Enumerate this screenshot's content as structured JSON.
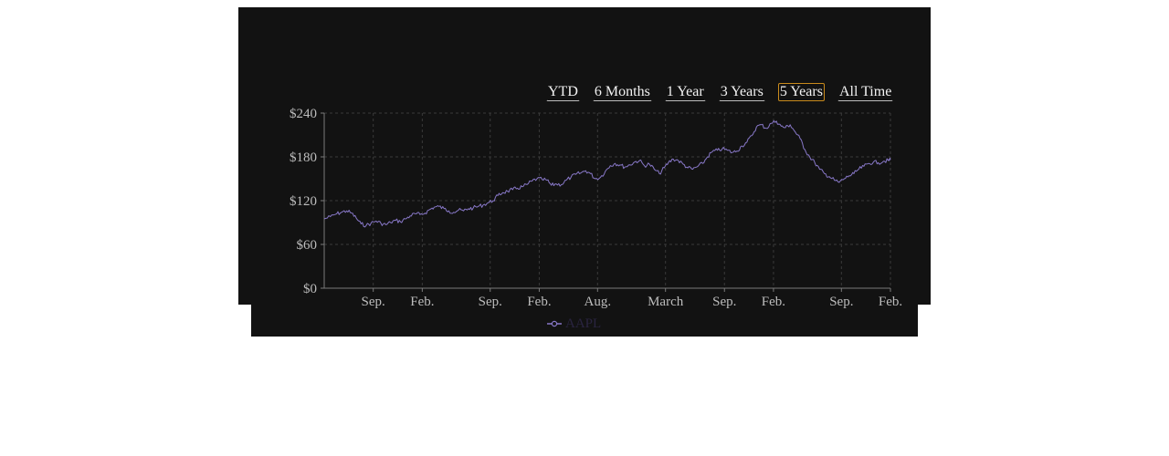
{
  "range_buttons": [
    {
      "label": "YTD",
      "active": false
    },
    {
      "label": "6 Months",
      "active": false
    },
    {
      "label": "1 Year",
      "active": false
    },
    {
      "label": "3 Years",
      "active": false
    },
    {
      "label": "5 Years",
      "active": true
    },
    {
      "label": "All Time",
      "active": false
    }
  ],
  "colors": {
    "background": "#121212",
    "series": "#8878c8",
    "active_button_border": "#c88a1c",
    "grid": "#3a3a3a",
    "axis": "#7a7a7a",
    "tick_text": "#bdbdbd"
  },
  "chart_data": {
    "type": "line",
    "grid": true,
    "legend_position": "bottom",
    "ylim": [
      0,
      240
    ],
    "y_ticks": [
      {
        "value": 0,
        "label": "$0"
      },
      {
        "value": 60,
        "label": "$60"
      },
      {
        "value": 120,
        "label": "$120"
      },
      {
        "value": 180,
        "label": "$180"
      },
      {
        "value": 240,
        "label": "$240"
      }
    ],
    "x_ticks": [
      {
        "date": "2018-09-01",
        "label": "Sep."
      },
      {
        "date": "2019-02-01",
        "label": "Feb."
      },
      {
        "date": "2019-09-01",
        "label": "Sep."
      },
      {
        "date": "2020-02-01",
        "label": "Feb."
      },
      {
        "date": "2020-08-01",
        "label": "Aug."
      },
      {
        "date": "2021-03-01",
        "label": "March"
      },
      {
        "date": "2021-09-01",
        "label": "Sep."
      },
      {
        "date": "2022-02-01",
        "label": "Feb."
      },
      {
        "date": "2022-09-01",
        "label": "Sep."
      },
      {
        "date": "2023-02-01",
        "label": "Feb."
      }
    ],
    "xlim": [
      "2018-04-01",
      "2023-02-01"
    ],
    "series": [
      {
        "name": "AAPL",
        "points": [
          [
            "2018-04-01",
            95
          ],
          [
            "2018-04-20",
            98
          ],
          [
            "2018-05-10",
            102
          ],
          [
            "2018-05-25",
            104
          ],
          [
            "2018-06-10",
            106
          ],
          [
            "2018-06-25",
            103
          ],
          [
            "2018-07-10",
            96
          ],
          [
            "2018-07-25",
            88
          ],
          [
            "2018-08-10",
            86
          ],
          [
            "2018-08-25",
            89
          ],
          [
            "2018-09-10",
            92
          ],
          [
            "2018-09-25",
            89
          ],
          [
            "2018-10-10",
            87
          ],
          [
            "2018-10-25",
            90
          ],
          [
            "2018-11-10",
            93
          ],
          [
            "2018-11-25",
            91
          ],
          [
            "2018-12-10",
            95
          ],
          [
            "2018-12-25",
            99
          ],
          [
            "2019-01-10",
            102
          ],
          [
            "2019-01-25",
            101
          ],
          [
            "2019-02-10",
            103
          ],
          [
            "2019-02-25",
            108
          ],
          [
            "2019-03-10",
            111
          ],
          [
            "2019-03-25",
            112
          ],
          [
            "2019-04-10",
            109
          ],
          [
            "2019-04-25",
            106
          ],
          [
            "2019-05-10",
            104
          ],
          [
            "2019-05-25",
            107
          ],
          [
            "2019-06-10",
            106
          ],
          [
            "2019-06-25",
            109
          ],
          [
            "2019-07-10",
            110
          ],
          [
            "2019-07-25",
            112
          ],
          [
            "2019-08-10",
            114
          ],
          [
            "2019-08-25",
            117
          ],
          [
            "2019-09-10",
            120
          ],
          [
            "2019-09-25",
            127
          ],
          [
            "2019-10-10",
            131
          ],
          [
            "2019-10-25",
            133
          ],
          [
            "2019-11-10",
            135
          ],
          [
            "2019-11-25",
            137
          ],
          [
            "2019-12-10",
            139
          ],
          [
            "2019-12-25",
            142
          ],
          [
            "2020-01-10",
            147
          ],
          [
            "2020-01-25",
            150
          ],
          [
            "2020-02-10",
            149
          ],
          [
            "2020-02-25",
            148
          ],
          [
            "2020-03-10",
            141
          ],
          [
            "2020-03-25",
            143
          ],
          [
            "2020-04-10",
            142
          ],
          [
            "2020-04-25",
            148
          ],
          [
            "2020-05-10",
            152
          ],
          [
            "2020-05-25",
            156
          ],
          [
            "2020-06-10",
            158
          ],
          [
            "2020-06-25",
            161
          ],
          [
            "2020-07-10",
            157
          ],
          [
            "2020-07-25",
            150
          ],
          [
            "2020-08-10",
            152
          ],
          [
            "2020-08-25",
            160
          ],
          [
            "2020-09-10",
            168
          ],
          [
            "2020-09-25",
            171
          ],
          [
            "2020-10-10",
            169
          ],
          [
            "2020-10-25",
            166
          ],
          [
            "2020-11-10",
            169
          ],
          [
            "2020-11-25",
            173
          ],
          [
            "2020-12-10",
            175
          ],
          [
            "2020-12-25",
            168
          ],
          [
            "2021-01-10",
            170
          ],
          [
            "2021-01-25",
            163
          ],
          [
            "2021-02-10",
            157
          ],
          [
            "2021-02-25",
            165
          ],
          [
            "2021-03-10",
            172
          ],
          [
            "2021-03-25",
            177
          ],
          [
            "2021-04-10",
            175
          ],
          [
            "2021-04-25",
            170
          ],
          [
            "2021-05-10",
            165
          ],
          [
            "2021-05-25",
            163
          ],
          [
            "2021-06-10",
            167
          ],
          [
            "2021-06-25",
            171
          ],
          [
            "2021-07-10",
            180
          ],
          [
            "2021-07-25",
            187
          ],
          [
            "2021-08-10",
            189
          ],
          [
            "2021-08-25",
            191
          ],
          [
            "2021-09-10",
            189
          ],
          [
            "2021-09-25",
            186
          ],
          [
            "2021-10-10",
            188
          ],
          [
            "2021-10-25",
            195
          ],
          [
            "2021-11-10",
            200
          ],
          [
            "2021-11-25",
            209
          ],
          [
            "2021-12-10",
            221
          ],
          [
            "2021-12-25",
            224
          ],
          [
            "2022-01-10",
            219
          ],
          [
            "2022-01-25",
            226
          ],
          [
            "2022-02-10",
            229
          ],
          [
            "2022-02-25",
            222
          ],
          [
            "2022-03-10",
            220
          ],
          [
            "2022-03-25",
            224
          ],
          [
            "2022-04-10",
            214
          ],
          [
            "2022-04-25",
            205
          ],
          [
            "2022-05-10",
            190
          ],
          [
            "2022-05-25",
            180
          ],
          [
            "2022-06-10",
            172
          ],
          [
            "2022-06-25",
            163
          ],
          [
            "2022-07-10",
            157
          ],
          [
            "2022-07-25",
            153
          ],
          [
            "2022-08-10",
            148
          ],
          [
            "2022-08-25",
            145
          ],
          [
            "2022-09-10",
            150
          ],
          [
            "2022-09-25",
            154
          ],
          [
            "2022-10-10",
            157
          ],
          [
            "2022-10-25",
            163
          ],
          [
            "2022-11-10",
            167
          ],
          [
            "2022-11-25",
            171
          ],
          [
            "2022-12-10",
            173
          ],
          [
            "2022-12-25",
            172
          ],
          [
            "2023-01-10",
            174
          ],
          [
            "2023-01-25",
            175
          ],
          [
            "2023-02-01",
            176
          ]
        ]
      }
    ]
  }
}
